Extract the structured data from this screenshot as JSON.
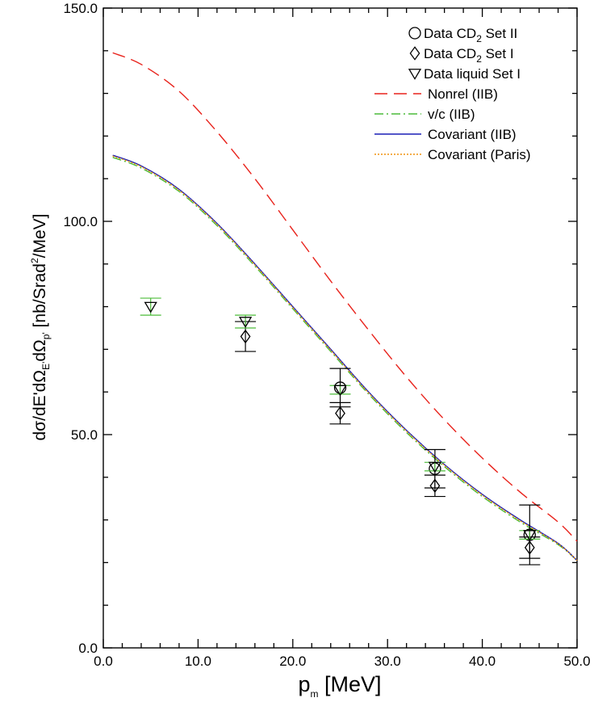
{
  "chart_data": {
    "type": "line",
    "xlabel_main": "p",
    "xlabel_sub": "m",
    "xlabel_rest": " [MeV]",
    "ylabel_parts": {
      "p1": "dσ/dE'dΩ",
      "s1": "E'",
      "p2": "dΩ",
      "s2": "p'",
      "p3": " [nb/Srad",
      "sup": "2",
      "p4": "/MeV]"
    },
    "xlim": [
      0,
      50
    ],
    "ylim": [
      0,
      150
    ],
    "xticks": [
      "0.0",
      "10.0",
      "20.0",
      "30.0",
      "40.0",
      "50.0"
    ],
    "yticks": [
      "0.0",
      "50.0",
      "100.0",
      "150.0"
    ],
    "grid": false,
    "legend_position": "top-right",
    "series": [
      {
        "name": "Nonrel (IIB)",
        "style": "dashed",
        "color": "#e8221b",
        "x": [
          1,
          4,
          8,
          12,
          16,
          20,
          24,
          28,
          32,
          36,
          40,
          44,
          48,
          50
        ],
        "y": [
          139.5,
          136.8,
          130.5,
          121,
          110,
          98,
          86,
          74.5,
          63.5,
          53.5,
          44.5,
          36.5,
          29.5,
          25
        ]
      },
      {
        "name": "v/c (IIB)",
        "style": "dashdot",
        "color": "#4cbc3a",
        "x": [
          1,
          4,
          8,
          12,
          16,
          20,
          24,
          28,
          32,
          36,
          40,
          44,
          48,
          50
        ],
        "y": [
          115,
          112.5,
          107,
          99,
          89.5,
          79.5,
          69.5,
          59.5,
          50.5,
          42.5,
          35.5,
          29.5,
          24.2,
          20.5
        ]
      },
      {
        "name": "Covariant (IIB)",
        "style": "solid",
        "color": "#1a1fb5",
        "x": [
          1,
          4,
          8,
          12,
          16,
          20,
          24,
          28,
          32,
          36,
          40,
          44,
          48,
          50
        ],
        "y": [
          115.5,
          113,
          107.5,
          99.5,
          90,
          80,
          70,
          60,
          51,
          43,
          36,
          30,
          24.5,
          20.5
        ]
      },
      {
        "name": "Covariant (Paris)",
        "style": "dotted",
        "color": "#f0920f",
        "x": [
          1,
          4,
          8,
          12,
          16,
          20,
          24,
          28,
          32,
          36,
          40,
          44,
          48,
          50
        ],
        "y": [
          115.3,
          112.8,
          107.3,
          99.3,
          89.8,
          79.8,
          69.8,
          59.8,
          50.8,
          42.8,
          35.8,
          29.8,
          24.4,
          20.5
        ]
      }
    ],
    "data_series": [
      {
        "name_main": "Data CD",
        "name_sub": "2",
        "name_rest": "  Set II",
        "marker": "circle",
        "color": "#000000",
        "points": [
          {
            "x": 25,
            "y": 61,
            "err": 4.5
          },
          {
            "x": 35,
            "y": 42,
            "err": 4.5
          },
          {
            "x": 45,
            "y": 26.5,
            "err": 7
          }
        ]
      },
      {
        "name_main": "Data CD",
        "name_sub": "2",
        "name_rest": "  Set I",
        "marker": "diamond",
        "color": "#000000",
        "points": [
          {
            "x": 15,
            "y": 73,
            "err": 3.5
          },
          {
            "x": 25,
            "y": 55,
            "err": 2.5
          },
          {
            "x": 35,
            "y": 38,
            "err": 2.5
          },
          {
            "x": 45,
            "y": 23.5,
            "err": 2.5
          }
        ]
      },
      {
        "name_main": "Data liquid Set I",
        "name_sub": "",
        "name_rest": "",
        "marker": "triangle-down",
        "color": "#000000",
        "errcolor": "#4cbc3a",
        "points": [
          {
            "x": 5,
            "y": 80,
            "err": 2
          },
          {
            "x": 15,
            "y": 76.5,
            "err": 1.5
          },
          {
            "x": 25,
            "y": 60.5,
            "err": 1
          },
          {
            "x": 35,
            "y": 42.5,
            "err": 1
          },
          {
            "x": 45,
            "y": 26.5,
            "err": 1
          }
        ]
      }
    ]
  }
}
